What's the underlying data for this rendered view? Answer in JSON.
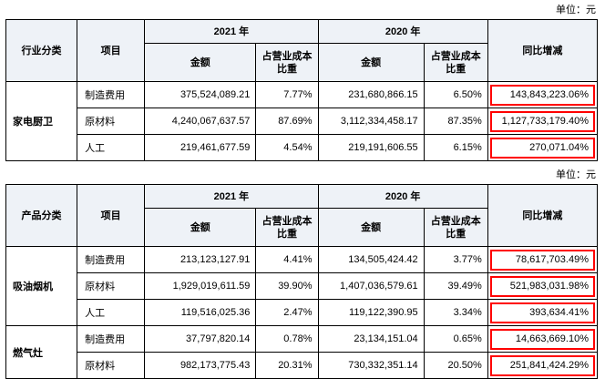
{
  "unit_label": "单位：元",
  "colors": {
    "highlight_box": "#ff0000",
    "header_bg": "#eef2f7"
  },
  "table1": {
    "headers": {
      "category": "行业分类",
      "item": "项目",
      "year_2021": "2021 年",
      "year_2020": "2020 年",
      "amount": "金额",
      "cost_ratio": "占营业成本比重",
      "yoy": "同比增减"
    },
    "groups": [
      {
        "category": "家电厨卫",
        "rows": [
          {
            "item": "制造费用",
            "amount_2021": "375,524,089.21",
            "ratio_2021": "7.77%",
            "amount_2020": "231,680,866.15",
            "ratio_2020": "6.50%",
            "yoy": "143,843,223.06%"
          },
          {
            "item": "原材料",
            "amount_2021": "4,240,067,637.57",
            "ratio_2021": "87.69%",
            "amount_2020": "3,112,334,458.17",
            "ratio_2020": "87.35%",
            "yoy": "1,127,733,179.40%"
          },
          {
            "item": "人工",
            "amount_2021": "219,461,677.59",
            "ratio_2021": "4.54%",
            "amount_2020": "219,191,606.55",
            "ratio_2020": "6.15%",
            "yoy": "270,071.04%"
          }
        ]
      }
    ]
  },
  "table2": {
    "headers": {
      "category": "产品分类",
      "item": "项目",
      "year_2021": "2021 年",
      "year_2020": "2020 年",
      "amount": "金额",
      "cost_ratio": "占营业成本比重",
      "yoy": "同比增减"
    },
    "groups": [
      {
        "category": "吸油烟机",
        "rows": [
          {
            "item": "制造费用",
            "amount_2021": "213,123,127.91",
            "ratio_2021": "4.41%",
            "amount_2020": "134,505,424.42",
            "ratio_2020": "3.77%",
            "yoy": "78,617,703.49%"
          },
          {
            "item": "原材料",
            "amount_2021": "1,929,019,611.59",
            "ratio_2021": "39.90%",
            "amount_2020": "1,407,036,579.61",
            "ratio_2020": "39.49%",
            "yoy": "521,983,031.98%"
          },
          {
            "item": "人工",
            "amount_2021": "119,516,025.36",
            "ratio_2021": "2.47%",
            "amount_2020": "119,122,390.95",
            "ratio_2020": "3.34%",
            "yoy": "393,634.41%"
          }
        ]
      },
      {
        "category": "燃气灶",
        "rows": [
          {
            "item": "制造费用",
            "amount_2021": "37,797,820.14",
            "ratio_2021": "0.78%",
            "amount_2020": "23,134,151.04",
            "ratio_2020": "0.65%",
            "yoy": "14,663,669.10%"
          },
          {
            "item": "原材料",
            "amount_2021": "982,173,775.43",
            "ratio_2021": "20.31%",
            "amount_2020": "730,332,351.14",
            "ratio_2020": "20.50%",
            "yoy": "251,841,424.29%"
          }
        ]
      }
    ]
  }
}
